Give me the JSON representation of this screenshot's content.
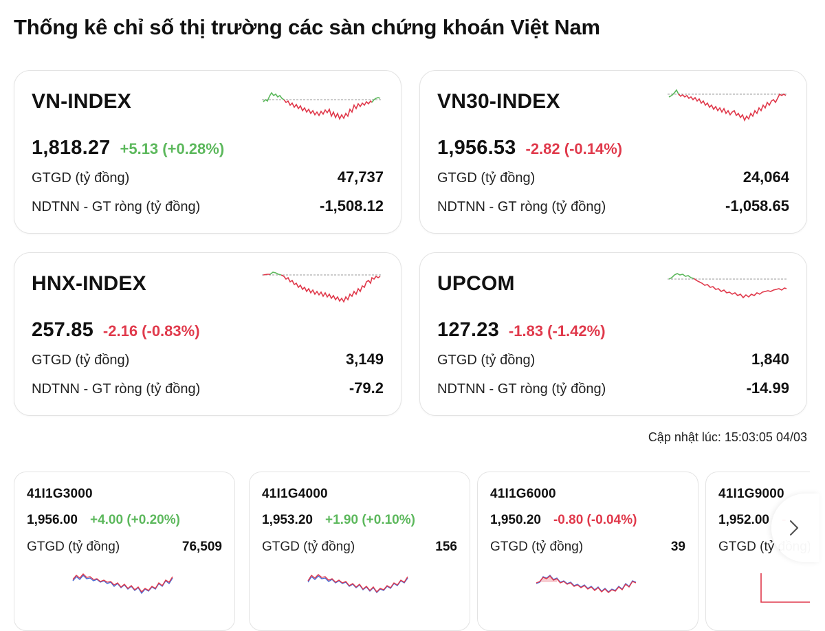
{
  "page_title": "Thống kê chỉ số thị trường các sàn chứng khoán Việt Nam",
  "indices": [
    {
      "name": "VN-INDEX",
      "price": "1,818.27",
      "change": "+5.13 (+0.28%)",
      "direction": "up",
      "gtgd_label": "GTGD (tỷ đồng)",
      "gtgd_value": "47,737",
      "ndtnn_label": "NDTNN - GT ròng (tỷ đồng)",
      "ndtnn_value": "-1,508.12"
    },
    {
      "name": "VN30-INDEX",
      "price": "1,956.53",
      "change": "-2.82 (-0.14%)",
      "direction": "down",
      "gtgd_label": "GTGD (tỷ đồng)",
      "gtgd_value": "24,064",
      "ndtnn_label": "NDTNN - GT ròng (tỷ đồng)",
      "ndtnn_value": "-1,058.65"
    },
    {
      "name": "HNX-INDEX",
      "price": "257.85",
      "change": "-2.16 (-0.83%)",
      "direction": "down",
      "gtgd_label": "GTGD (tỷ đồng)",
      "gtgd_value": "3,149",
      "ndtnn_label": "NDTNN - GT ròng (tỷ đồng)",
      "ndtnn_value": "-79.2"
    },
    {
      "name": "UPCOM",
      "price": "127.23",
      "change": "-1.83 (-1.42%)",
      "direction": "down",
      "gtgd_label": "GTGD (tỷ đồng)",
      "gtgd_value": "1,840",
      "ndtnn_label": "NDTNN - GT ròng (tỷ đồng)",
      "ndtnn_value": "-14.99"
    }
  ],
  "updated_text": "Cập nhật lúc: 15:03:05 04/03",
  "futures": [
    {
      "code": "41I1G3000",
      "price": "1,956.00",
      "change": "+4.00 (+0.20%)",
      "direction": "up",
      "gtgd_label": "GTGD (tỷ đồng)",
      "gtgd_value": "76,509"
    },
    {
      "code": "41I1G4000",
      "price": "1,953.20",
      "change": "+1.90 (+0.10%)",
      "direction": "up",
      "gtgd_label": "GTGD (tỷ đồng)",
      "gtgd_value": "156"
    },
    {
      "code": "41I1G6000",
      "price": "1,950.20",
      "change": "-0.80 (-0.04%)",
      "direction": "down",
      "gtgd_label": "GTGD (tỷ đồng)",
      "gtgd_value": "39"
    },
    {
      "code": "41I1G9000",
      "price": "1,952.00",
      "change": "-",
      "direction": "down",
      "gtgd_label": "GTGD (tỷ đồng)",
      "gtgd_value": ""
    }
  ],
  "colors": {
    "up": "#5cb85c",
    "down": "#e0394b",
    "reference_line": "#9a9a9a",
    "future_series_blue": "#4a6fd8"
  },
  "icons": {
    "next": "chevron-right-icon"
  }
}
